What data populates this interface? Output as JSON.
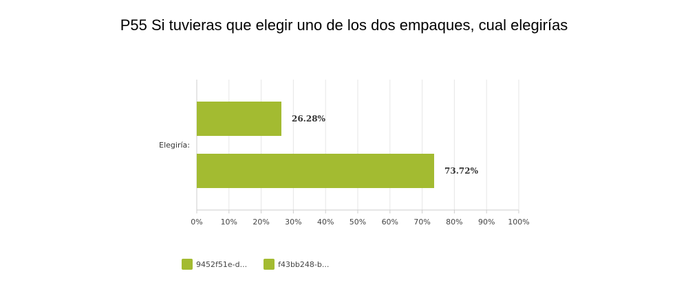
{
  "chart_data": {
    "type": "bar",
    "orientation": "horizontal",
    "title": "P55 Si tuvieras que elegir uno de los dos empaques, cual elegirías",
    "categories": [
      "Elegiría:"
    ],
    "series": [
      {
        "name": "9452f51e-d...",
        "values": [
          26.28
        ],
        "label": "26.28%",
        "color": "#a3bb31"
      },
      {
        "name": "f43bb248-b...",
        "values": [
          73.72
        ],
        "label": "73.72%",
        "color": "#a3bb31"
      }
    ],
    "xlim": [
      0,
      100
    ],
    "x_ticks": [
      "0%",
      "10%",
      "20%",
      "30%",
      "40%",
      "50%",
      "60%",
      "70%",
      "80%",
      "90%",
      "100%"
    ],
    "grid": true,
    "legend_position": "bottom-left"
  }
}
